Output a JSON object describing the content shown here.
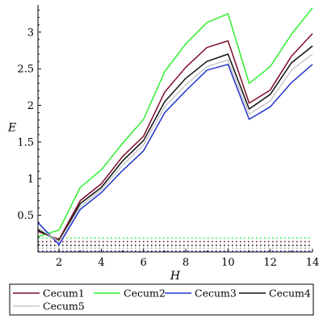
{
  "chart_data": {
    "type": "line",
    "xlabel": "H",
    "ylabel": "E",
    "xlim": [
      1,
      14
    ],
    "ylim": [
      0,
      3.35
    ],
    "x_ticks": [
      2,
      4,
      6,
      8,
      10,
      12,
      14
    ],
    "y_ticks": [
      0.5,
      1,
      1.5,
      2,
      2.5,
      3
    ],
    "grid": false,
    "legend_position": "bottom",
    "x": [
      1,
      2,
      3,
      4,
      5,
      6,
      7,
      8,
      9,
      10,
      11,
      12,
      13,
      14
    ],
    "series": [
      {
        "name": "Cecum1",
        "color": "#7f0d27",
        "values": [
          0.28,
          0.17,
          0.7,
          0.93,
          1.3,
          1.58,
          2.18,
          2.52,
          2.79,
          2.88,
          2.03,
          2.21,
          2.67,
          2.98
        ]
      },
      {
        "name": "Cecum2",
        "color": "#2ef02e",
        "values": [
          0.21,
          0.3,
          0.88,
          1.12,
          1.48,
          1.81,
          2.46,
          2.84,
          3.13,
          3.25,
          2.3,
          2.53,
          2.97,
          3.33
        ]
      },
      {
        "name": "Cecum3",
        "color": "#2233cc",
        "values": [
          0.4,
          0.1,
          0.58,
          0.81,
          1.11,
          1.38,
          1.9,
          2.2,
          2.48,
          2.56,
          1.81,
          1.98,
          2.31,
          2.56
        ]
      },
      {
        "name": "Cecum4",
        "color": "#111111",
        "values": [
          0.3,
          0.15,
          0.66,
          0.88,
          1.24,
          1.52,
          2.05,
          2.37,
          2.6,
          2.7,
          1.95,
          2.15,
          2.58,
          2.81
        ]
      },
      {
        "name": "Cecum5",
        "color": "#c8c8c8",
        "values": [
          0.33,
          0.14,
          0.62,
          0.85,
          1.18,
          1.46,
          1.98,
          2.28,
          2.53,
          2.62,
          1.88,
          2.06,
          2.48,
          2.7
        ]
      }
    ],
    "reference_lines": [
      {
        "y": 0.19,
        "color": "#2ef02e"
      },
      {
        "y": 0.14,
        "color": "#7f0d27"
      },
      {
        "y": 0.09,
        "color": "#111111"
      },
      {
        "y": 0.05,
        "color": "#aaaaaa"
      },
      {
        "y": 0.01,
        "color": "#2233cc"
      }
    ]
  }
}
